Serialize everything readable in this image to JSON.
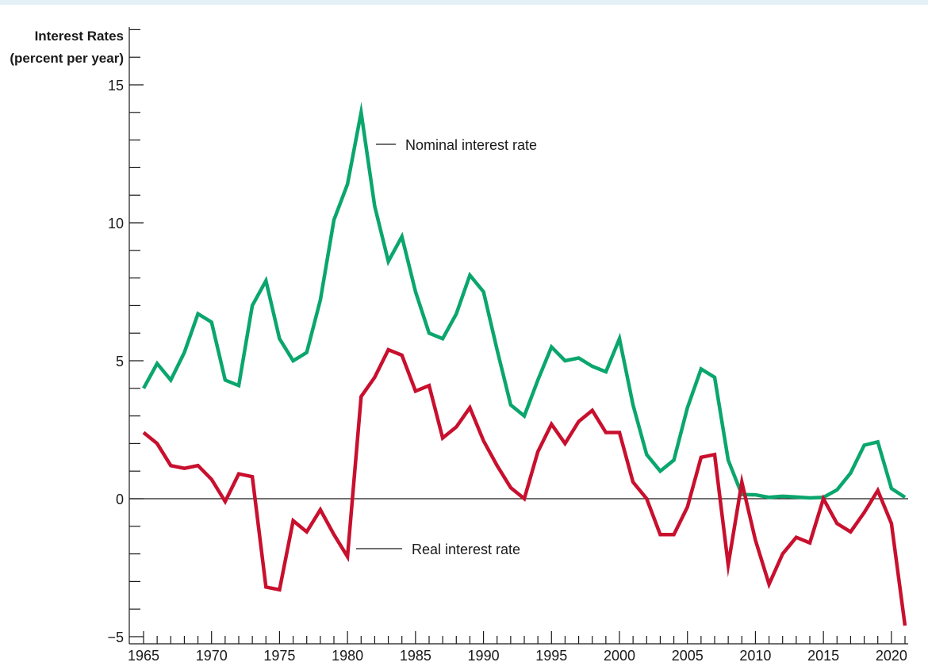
{
  "chart_data": {
    "type": "line",
    "ylabel": [
      "Interest Rates",
      "(percent per year)"
    ],
    "ylim": [
      -5,
      15
    ],
    "xlim": [
      1965,
      2021
    ],
    "y_ticks": [
      {
        "value": 15,
        "label": "15"
      },
      {
        "value": 10,
        "label": "10"
      },
      {
        "value": 5,
        "label": "5"
      },
      {
        "value": 0,
        "label": "0"
      },
      {
        "value": -5,
        "label": "−5"
      }
    ],
    "x_ticks": [
      {
        "value": 1965,
        "label": "1965"
      },
      {
        "value": 1970,
        "label": "1970"
      },
      {
        "value": 1975,
        "label": "1975"
      },
      {
        "value": 1980,
        "label": "1980"
      },
      {
        "value": 1985,
        "label": "1985"
      },
      {
        "value": 1990,
        "label": "1990"
      },
      {
        "value": 1995,
        "label": "1995"
      },
      {
        "value": 2000,
        "label": "2000"
      },
      {
        "value": 2005,
        "label": "2005"
      },
      {
        "value": 2010,
        "label": "2010"
      },
      {
        "value": 2015,
        "label": "2015"
      },
      {
        "value": 2020,
        "label": "2020"
      }
    ],
    "x": [
      1965,
      1966,
      1967,
      1968,
      1969,
      1970,
      1971,
      1972,
      1973,
      1974,
      1975,
      1976,
      1977,
      1978,
      1979,
      1980,
      1981,
      1982,
      1983,
      1984,
      1985,
      1986,
      1987,
      1988,
      1989,
      1990,
      1991,
      1992,
      1993,
      1994,
      1995,
      1996,
      1997,
      1998,
      1999,
      2000,
      2001,
      2002,
      2003,
      2004,
      2005,
      2006,
      2007,
      2008,
      2009,
      2010,
      2011,
      2012,
      2013,
      2014,
      2015,
      2016,
      2017,
      2018,
      2019,
      2020,
      2021
    ],
    "series": [
      {
        "name": "Nominal interest rate",
        "color": "#0aa66d",
        "values": [
          4.0,
          4.9,
          4.3,
          5.3,
          6.7,
          6.4,
          4.3,
          4.1,
          7.0,
          7.9,
          5.8,
          5.0,
          5.3,
          7.2,
          10.1,
          11.4,
          14.0,
          10.6,
          8.6,
          9.5,
          7.5,
          6.0,
          5.8,
          6.7,
          8.1,
          7.5,
          5.4,
          3.4,
          3.0,
          4.3,
          5.5,
          5.0,
          5.1,
          4.8,
          4.6,
          5.8,
          3.4,
          1.6,
          1.0,
          1.4,
          3.3,
          4.7,
          4.4,
          1.4,
          0.15,
          0.14,
          0.05,
          0.09,
          0.06,
          0.03,
          0.05,
          0.32,
          0.93,
          1.94,
          2.06,
          0.37,
          0.05
        ]
      },
      {
        "name": "Real interest rate",
        "color": "#c8102e",
        "values": [
          2.4,
          2.0,
          1.2,
          1.1,
          1.2,
          0.7,
          -0.1,
          0.9,
          0.8,
          -3.2,
          -3.3,
          -0.8,
          -1.2,
          -0.4,
          -1.3,
          -2.1,
          3.7,
          4.4,
          5.4,
          5.2,
          3.9,
          4.1,
          2.2,
          2.6,
          3.3,
          2.1,
          1.2,
          0.4,
          0.0,
          1.7,
          2.7,
          2.0,
          2.8,
          3.2,
          2.4,
          2.4,
          0.6,
          0.0,
          -1.3,
          -1.3,
          -0.3,
          1.5,
          1.6,
          -2.4,
          0.6,
          -1.5,
          -3.1,
          -2.0,
          -1.4,
          -1.6,
          0.0,
          -0.9,
          -1.2,
          -0.5,
          0.3,
          -0.9,
          -4.6
        ]
      }
    ],
    "annotations": [
      {
        "series": 0,
        "text": "Nominal interest rate"
      },
      {
        "series": 1,
        "text": "Real interest rate"
      }
    ]
  }
}
